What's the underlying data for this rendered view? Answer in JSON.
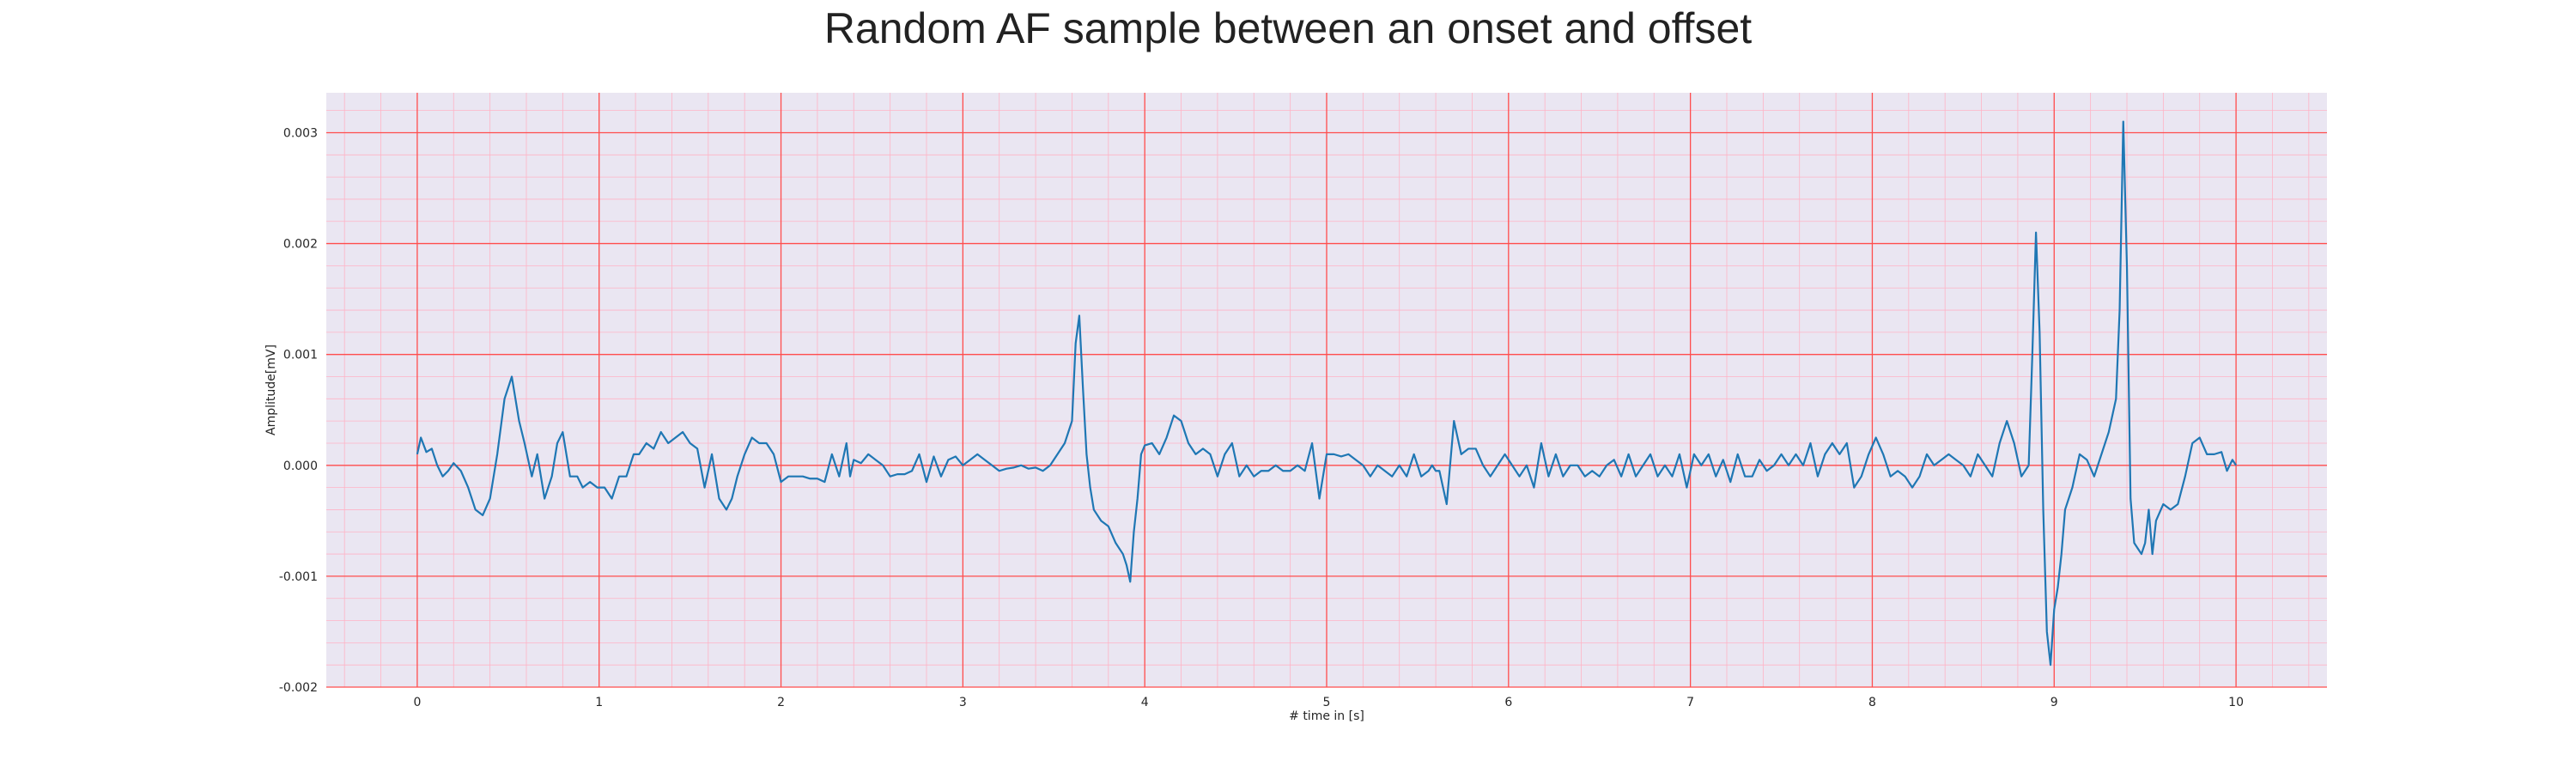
{
  "chart_data": {
    "type": "line",
    "title": "Random AF sample between an onset and offset",
    "xlabel": "# time in [s]",
    "ylabel": "Amplitude[mV]",
    "xlim": [
      -0.5,
      10.5
    ],
    "ylim": [
      -0.002,
      0.00336
    ],
    "x_ticks": [
      0,
      1,
      2,
      3,
      4,
      5,
      6,
      7,
      8,
      9,
      10
    ],
    "x_tick_labels": [
      "0",
      "1",
      "2",
      "3",
      "4",
      "5",
      "6",
      "7",
      "8",
      "9",
      "10"
    ],
    "y_ticks": [
      -0.002,
      -0.001,
      0.0,
      0.001,
      0.002,
      0.003
    ],
    "y_tick_labels": [
      "-0.002",
      "-0.001",
      "0.000",
      "0.001",
      "0.002",
      "0.003"
    ],
    "grid": true,
    "minor_grid": true,
    "colors": {
      "line": "#1f77b4",
      "major_grid": "#ff4d4d",
      "minor_grid": "#ffb3c6",
      "plot_bg": "#eae6f2"
    },
    "series": [
      {
        "x": [
          0.0,
          0.02,
          0.05,
          0.08,
          0.11,
          0.14,
          0.17,
          0.2,
          0.24,
          0.28,
          0.32,
          0.36,
          0.4,
          0.44,
          0.48,
          0.52,
          0.56,
          0.59,
          0.63,
          0.66,
          0.7,
          0.74,
          0.77,
          0.8,
          0.84,
          0.88,
          0.91,
          0.95,
          0.99,
          1.03,
          1.07,
          1.11,
          1.15,
          1.19,
          1.22,
          1.26,
          1.3,
          1.34,
          1.38,
          1.42,
          1.46,
          1.5,
          1.54,
          1.58,
          1.62,
          1.66,
          1.7,
          1.73,
          1.76,
          1.8,
          1.84,
          1.88,
          1.92,
          1.96,
          2.0,
          2.04,
          2.08,
          2.12,
          2.16,
          2.2,
          2.24,
          2.28,
          2.32,
          2.36,
          2.38,
          2.4,
          2.44,
          2.48,
          2.52,
          2.56,
          2.6,
          2.64,
          2.68,
          2.72,
          2.76,
          2.8,
          2.84,
          2.88,
          2.92,
          2.96,
          3.0,
          3.04,
          3.08,
          3.12,
          3.16,
          3.2,
          3.24,
          3.28,
          3.32,
          3.36,
          3.4,
          3.44,
          3.48,
          3.52,
          3.56,
          3.6,
          3.62,
          3.64,
          3.66,
          3.68,
          3.7,
          3.72,
          3.76,
          3.8,
          3.84,
          3.88,
          3.9,
          3.92,
          3.94,
          3.96,
          3.98,
          4.0,
          4.04,
          4.08,
          4.12,
          4.16,
          4.2,
          4.24,
          4.28,
          4.32,
          4.36,
          4.4,
          4.44,
          4.48,
          4.52,
          4.56,
          4.6,
          4.64,
          4.68,
          4.72,
          4.76,
          4.8,
          4.84,
          4.88,
          4.92,
          4.96,
          5.0,
          5.04,
          5.08,
          5.12,
          5.16,
          5.2,
          5.24,
          5.28,
          5.32,
          5.36,
          5.4,
          5.44,
          5.48,
          5.52,
          5.56,
          5.58,
          5.6,
          5.62,
          5.66,
          5.7,
          5.74,
          5.78,
          5.82,
          5.86,
          5.9,
          5.94,
          5.98,
          6.02,
          6.06,
          6.1,
          6.14,
          6.18,
          6.22,
          6.26,
          6.3,
          6.34,
          6.38,
          6.42,
          6.46,
          6.5,
          6.54,
          6.58,
          6.62,
          6.66,
          6.7,
          6.74,
          6.78,
          6.82,
          6.86,
          6.9,
          6.94,
          6.98,
          7.02,
          7.06,
          7.1,
          7.14,
          7.18,
          7.22,
          7.26,
          7.3,
          7.34,
          7.38,
          7.42,
          7.46,
          7.5,
          7.54,
          7.58,
          7.62,
          7.66,
          7.7,
          7.74,
          7.78,
          7.82,
          7.86,
          7.9,
          7.94,
          7.98,
          8.02,
          8.06,
          8.1,
          8.14,
          8.18,
          8.22,
          8.26,
          8.3,
          8.34,
          8.38,
          8.42,
          8.46,
          8.5,
          8.54,
          8.58,
          8.62,
          8.66,
          8.7,
          8.74,
          8.78,
          8.82,
          8.86,
          8.88,
          8.9,
          8.92,
          8.94,
          8.96,
          8.98,
          9.0,
          9.02,
          9.04,
          9.06,
          9.1,
          9.14,
          9.18,
          9.22,
          9.26,
          9.3,
          9.34,
          9.36,
          9.38,
          9.4,
          9.42,
          9.44,
          9.46,
          9.48,
          9.5,
          9.52,
          9.54,
          9.56,
          9.6,
          9.64,
          9.68,
          9.72,
          9.76,
          9.8,
          9.84,
          9.88,
          9.92,
          9.95,
          9.98,
          10.0
        ],
        "y": [
          0.0001,
          0.00025,
          0.00012,
          0.00015,
          0.0,
          -0.0001,
          -5e-05,
          2e-05,
          -5e-05,
          -0.0002,
          -0.0004,
          -0.00045,
          -0.0003,
          0.0001,
          0.0006,
          0.0008,
          0.0004,
          0.0002,
          -0.0001,
          0.0001,
          -0.0003,
          -0.0001,
          0.0002,
          0.0003,
          -0.0001,
          -0.0001,
          -0.0002,
          -0.00015,
          -0.0002,
          -0.0002,
          -0.0003,
          -0.0001,
          -0.0001,
          0.0001,
          0.0001,
          0.0002,
          0.00015,
          0.0003,
          0.0002,
          0.00025,
          0.0003,
          0.0002,
          0.00015,
          -0.0002,
          0.0001,
          -0.0003,
          -0.0004,
          -0.0003,
          -0.0001,
          0.0001,
          0.00025,
          0.0002,
          0.0002,
          0.0001,
          -0.00015,
          -0.0001,
          -0.0001,
          -0.0001,
          -0.00012,
          -0.00012,
          -0.00015,
          0.0001,
          -0.0001,
          0.0002,
          -0.0001,
          5e-05,
          2e-05,
          0.0001,
          5e-05,
          0.0,
          -0.0001,
          -8e-05,
          -8e-05,
          -5e-05,
          0.0001,
          -0.00015,
          8e-05,
          -0.0001,
          5e-05,
          8e-05,
          0.0,
          5e-05,
          0.0001,
          5e-05,
          0.0,
          -5e-05,
          -3e-05,
          -2e-05,
          0.0,
          -3e-05,
          -2e-05,
          -5e-05,
          0.0,
          0.0001,
          0.0002,
          0.0004,
          0.0011,
          0.00135,
          0.0007,
          0.0001,
          -0.0002,
          -0.0004,
          -0.0005,
          -0.00055,
          -0.0007,
          -0.0008,
          -0.0009,
          -0.00105,
          -0.0006,
          -0.0003,
          0.0001,
          0.00018,
          0.0002,
          0.0001,
          0.00025,
          0.00045,
          0.0004,
          0.0002,
          0.0001,
          0.00015,
          0.0001,
          -0.0001,
          0.0001,
          0.0002,
          -0.0001,
          0.0,
          -0.0001,
          -5e-05,
          -5e-05,
          0.0,
          -5e-05,
          -5e-05,
          0.0,
          -5e-05,
          0.0002,
          -0.0003,
          0.0001,
          0.0001,
          8e-05,
          0.0001,
          5e-05,
          0.0,
          -0.0001,
          0.0,
          -5e-05,
          -0.0001,
          0.0,
          -0.0001,
          0.0001,
          -0.0001,
          -5e-05,
          0.0,
          -5e-05,
          -5e-05,
          -0.00035,
          0.0004,
          0.0001,
          0.00015,
          0.00015,
          0.0,
          -0.0001,
          0.0,
          0.0001,
          0.0,
          -0.0001,
          0.0,
          -0.0002,
          0.0002,
          -0.0001,
          0.0001,
          -0.0001,
          0.0,
          0.0,
          -0.0001,
          -5e-05,
          -0.0001,
          0.0,
          5e-05,
          -0.0001,
          0.0001,
          -0.0001,
          0.0,
          0.0001,
          -0.0001,
          0.0,
          -0.0001,
          0.0001,
          -0.0002,
          0.0001,
          0.0,
          0.0001,
          -0.0001,
          5e-05,
          -0.00015,
          0.0001,
          -0.0001,
          -0.0001,
          5e-05,
          -5e-05,
          0.0,
          0.0001,
          0.0,
          0.0001,
          0.0,
          0.0002,
          -0.0001,
          0.0001,
          0.0002,
          0.0001,
          0.0002,
          -0.0002,
          -0.0001,
          0.0001,
          0.00025,
          0.0001,
          -0.0001,
          -5e-05,
          -0.0001,
          -0.0002,
          -0.0001,
          0.0001,
          0.0,
          5e-05,
          0.0001,
          5e-05,
          0.0,
          -0.0001,
          0.0001,
          0.0,
          -0.0001,
          0.0002,
          0.0004,
          0.0002,
          -0.0001,
          0.0,
          0.001,
          0.0021,
          0.0012,
          -0.0004,
          -0.0015,
          -0.0018,
          -0.0013,
          -0.0011,
          -0.0008,
          -0.0004,
          -0.0002,
          0.0001,
          5e-05,
          -0.0001,
          0.0001,
          0.0003,
          0.0006,
          0.0014,
          0.0031,
          0.0018,
          -0.0003,
          -0.0007,
          -0.00075,
          -0.0008,
          -0.0007,
          -0.0004,
          -0.0008,
          -0.0005,
          -0.00035,
          -0.0004,
          -0.00035,
          -0.0001,
          0.0002,
          0.00025,
          0.0001,
          0.0001,
          0.00012,
          -5e-05,
          5e-05,
          0.0
        ]
      }
    ]
  }
}
